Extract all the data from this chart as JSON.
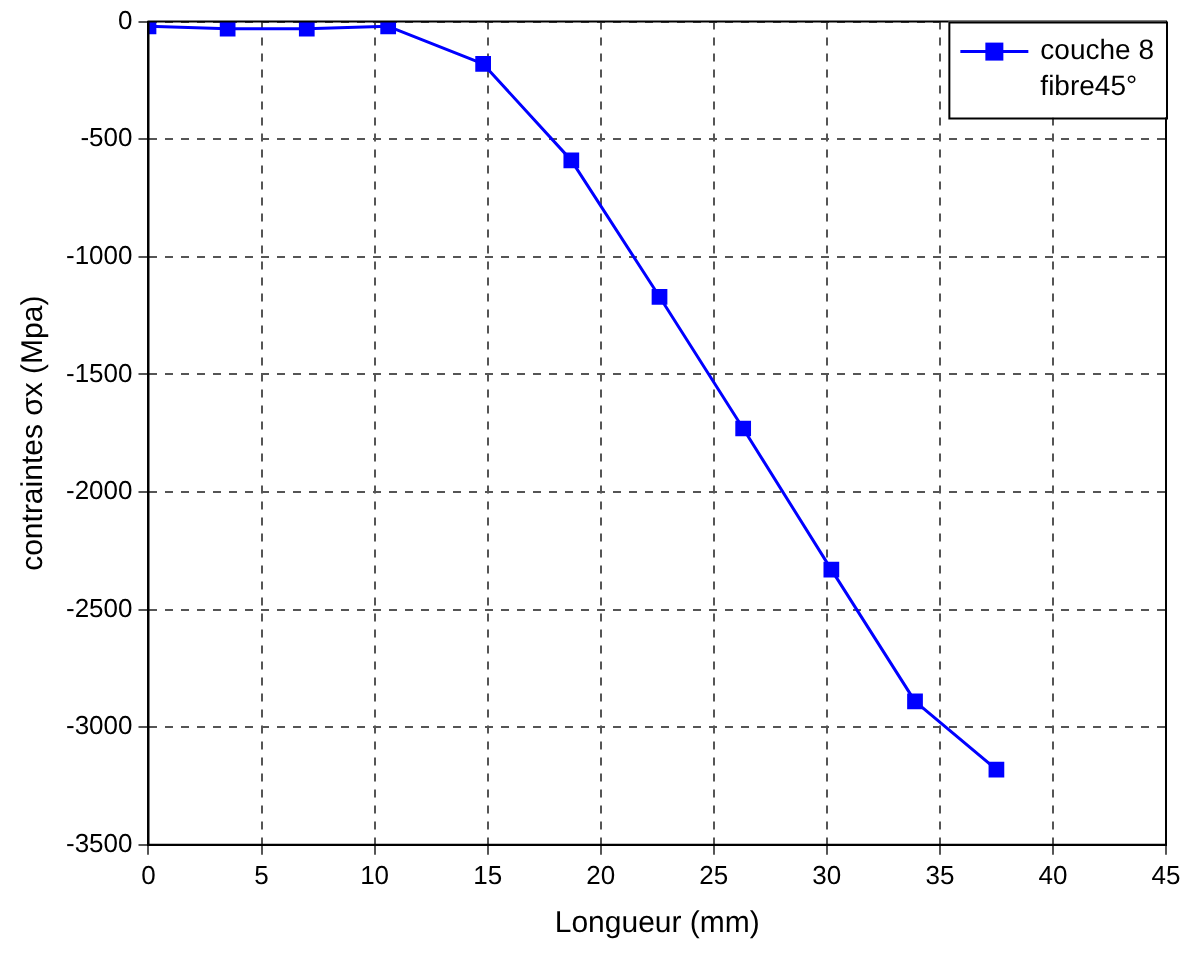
{
  "chart_data": {
    "type": "line",
    "xlabel": "Longueur (mm)",
    "ylabel": "contraintes σx (Mpa)",
    "x": [
      0,
      3.5,
      7,
      10.6,
      14.8,
      18.7,
      22.6,
      26.3,
      30.2,
      33.9,
      37.5
    ],
    "series": [
      {
        "name": "couche 8\nfibre45°",
        "color": "#0000ff",
        "values": [
          -20,
          -30,
          -30,
          -20,
          -180,
          -590,
          -1170,
          -1730,
          -2330,
          -2890,
          -3180
        ]
      }
    ],
    "xlim": [
      0,
      45
    ],
    "xticks": [
      0,
      5,
      10,
      15,
      20,
      25,
      30,
      35,
      40,
      45
    ],
    "ylim": [
      -3500,
      0
    ],
    "yticks": [
      -3500,
      -3000,
      -2500,
      -2000,
      -1500,
      -1000,
      -500,
      0
    ],
    "grid": true,
    "legend": "top right",
    "marker": "square",
    "line_style": "solid"
  }
}
